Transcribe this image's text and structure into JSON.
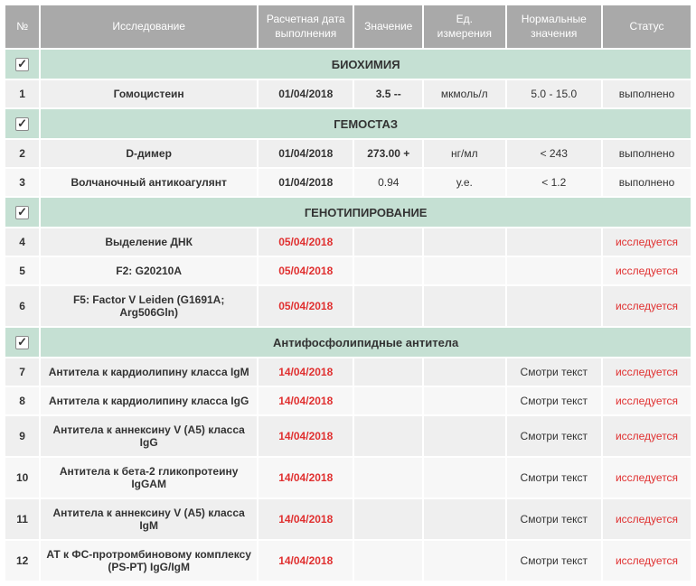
{
  "colors": {
    "header_bg": "#a9a9a9",
    "header_fg": "#ffffff",
    "section_bg": "#c5e0d3",
    "row_bg": "#efefef",
    "row_alt_bg": "#f7f7f7",
    "red": "#e03030",
    "text": "#333333"
  },
  "headers": {
    "num": "№",
    "study": "Исследование",
    "date": "Расчетная дата\nвыполнения",
    "value": "Значение",
    "unit": "Ед.\nизмерения",
    "normal": "Нормальные\nзначения",
    "status": "Статус"
  },
  "sections": [
    {
      "title": "БИОХИМИЯ",
      "checked": true,
      "rows": [
        {
          "num": "1",
          "study": "Гомоцистеин",
          "date": "01/04/2018",
          "date_red": false,
          "value": "3.5 --",
          "unit": "мкмоль/л",
          "normal": "5.0 - 15.0",
          "status": "выполнено",
          "status_red": false
        }
      ]
    },
    {
      "title": "ГЕМОСТАЗ",
      "checked": true,
      "rows": [
        {
          "num": "2",
          "study": "D-димер",
          "date": "01/04/2018",
          "date_red": false,
          "value": "273.00 +",
          "unit": "нг/мл",
          "normal": "< 243",
          "status": "выполнено",
          "status_red": false
        },
        {
          "num": "3",
          "study": "Волчаночный антикоагулянт",
          "date": "01/04/2018",
          "date_red": false,
          "value": "0.94",
          "value_bold": false,
          "unit": "у.е.",
          "normal": "< 1.2",
          "status": "выполнено",
          "status_red": false
        }
      ]
    },
    {
      "title": "ГЕНОТИПИРОВАНИЕ",
      "checked": true,
      "rows": [
        {
          "num": "4",
          "study": "Выделение ДНК",
          "date": "05/04/2018",
          "date_red": true,
          "value": "",
          "unit": "",
          "normal": "",
          "status": "исследуется",
          "status_red": true
        },
        {
          "num": "5",
          "study": "F2: G20210A",
          "date": "05/04/2018",
          "date_red": true,
          "value": "",
          "unit": "",
          "normal": "",
          "status": "исследуется",
          "status_red": true
        },
        {
          "num": "6",
          "study": "F5: Factor V Leiden (G1691A; Arg506Gln)",
          "date": "05/04/2018",
          "date_red": true,
          "value": "",
          "unit": "",
          "normal": "",
          "status": "исследуется",
          "status_red": true
        }
      ]
    },
    {
      "title": "Антифосфолипидные антитела",
      "checked": true,
      "rows": [
        {
          "num": "7",
          "study": "Антитела к кардиолипину класса IgM",
          "date": "14/04/2018",
          "date_red": true,
          "value": "",
          "unit": "",
          "normal": "Смотри текст",
          "status": "исследуется",
          "status_red": true
        },
        {
          "num": "8",
          "study": "Антитела к кардиолипину класса IgG",
          "date": "14/04/2018",
          "date_red": true,
          "value": "",
          "unit": "",
          "normal": "Смотри текст",
          "status": "исследуется",
          "status_red": true
        },
        {
          "num": "9",
          "study": "Антитела к аннексину V (A5) класса IgG",
          "date": "14/04/2018",
          "date_red": true,
          "value": "",
          "unit": "",
          "normal": "Смотри текст",
          "status": "исследуется",
          "status_red": true
        },
        {
          "num": "10",
          "study": "Антитела к бета-2 гликопротеину IgGAM",
          "date": "14/04/2018",
          "date_red": true,
          "value": "",
          "unit": "",
          "normal": "Смотри текст",
          "status": "исследуется",
          "status_red": true
        },
        {
          "num": "11",
          "study": "Антитела к аннексину V (A5) класса IgM",
          "date": "14/04/2018",
          "date_red": true,
          "value": "",
          "unit": "",
          "normal": "Смотри текст",
          "status": "исследуется",
          "status_red": true
        },
        {
          "num": "12",
          "study": "АТ к ФС-протромбиновому комплексу (PS-PT) IgG/IgM",
          "date": "14/04/2018",
          "date_red": true,
          "value": "",
          "unit": "",
          "normal": "Смотри текст",
          "status": "исследуется",
          "status_red": true
        }
      ]
    }
  ]
}
